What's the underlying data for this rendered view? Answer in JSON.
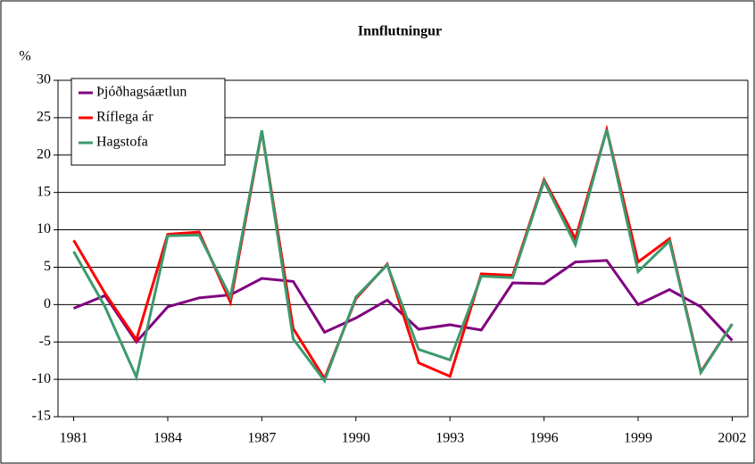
{
  "chart_data": {
    "type": "line",
    "title": "Innflutningur",
    "y_label": "%",
    "x": [
      1981,
      1982,
      1983,
      1984,
      1985,
      1986,
      1987,
      1988,
      1989,
      1990,
      1991,
      1992,
      1993,
      1994,
      1995,
      1996,
      1997,
      1998,
      1999,
      2000,
      2001,
      2002
    ],
    "xlim": [
      1980.5,
      2002.5
    ],
    "xticks": [
      1981,
      1984,
      1987,
      1990,
      1993,
      1996,
      1999,
      2002
    ],
    "ylim": [
      -15,
      30
    ],
    "yticks": [
      -15,
      -10,
      -5,
      0,
      5,
      10,
      15,
      20,
      25,
      30
    ],
    "grid": true,
    "legend": "top-left",
    "series": [
      {
        "name": "Þjóðhagsáætlun",
        "color": "#800080",
        "values": [
          -0.5,
          1.2,
          -5,
          -0.3,
          0.9,
          1.3,
          3.5,
          3.1,
          -3.7,
          -1.8,
          0.6,
          -3.3,
          -2.7,
          -3.4,
          2.9,
          2.8,
          5.7,
          5.9,
          0,
          2,
          -0.3,
          -4.8
        ]
      },
      {
        "name": "Ríflega ár",
        "color": "#ff0000",
        "values": [
          8.6,
          1.5,
          -4.7,
          9.4,
          9.7,
          0.3,
          23.2,
          -3.2,
          -9.9,
          0.8,
          5.4,
          -7.8,
          -9.6,
          4.1,
          3.9,
          16.7,
          8.8,
          23.4,
          5.7,
          8.8,
          -9,
          -2.6
        ]
      },
      {
        "name": "Hagstofa",
        "color": "#3c9a6e",
        "values": [
          7.1,
          -0.3,
          -9.7,
          9.2,
          9.3,
          1.0,
          23.3,
          -4.6,
          -10.2,
          1.0,
          5.3,
          -6,
          -7.4,
          3.8,
          3.6,
          16.5,
          8.0,
          23.4,
          4.4,
          8.5,
          -9.1,
          -2.6
        ]
      }
    ]
  }
}
